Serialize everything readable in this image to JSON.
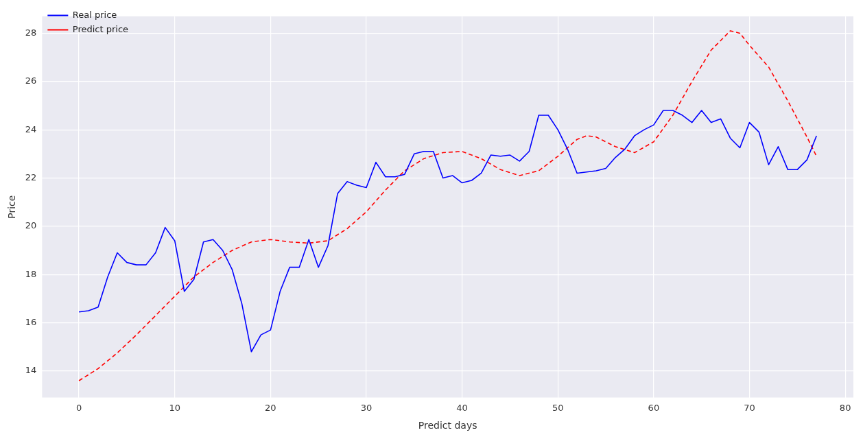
{
  "chart_data": {
    "type": "line",
    "xlabel": "Predict days",
    "ylabel": "Price",
    "xlim": [
      -3.85,
      80.85
    ],
    "ylim": [
      12.9,
      28.7
    ],
    "xticks": [
      0,
      10,
      20,
      30,
      40,
      50,
      60,
      70,
      80
    ],
    "yticks": [
      14,
      16,
      18,
      20,
      22,
      24,
      26,
      28
    ],
    "grid": true,
    "legend": "top left",
    "marker": "none",
    "series": [
      {
        "name": "Real price",
        "color": "#0000ff",
        "line_style": "solid",
        "x": [
          0,
          1,
          2,
          3,
          4,
          5,
          6,
          7,
          8,
          9,
          10,
          11,
          12,
          13,
          14,
          15,
          16,
          17,
          18,
          19,
          20,
          21,
          22,
          23,
          24,
          25,
          26,
          27,
          28,
          29,
          30,
          31,
          32,
          33,
          34,
          35,
          36,
          37,
          38,
          39,
          40,
          41,
          42,
          43,
          44,
          45,
          46,
          47,
          48,
          49,
          50,
          51,
          52,
          53,
          54,
          55,
          56,
          57,
          58,
          59,
          60,
          61,
          62,
          63,
          64,
          65,
          66,
          67,
          68,
          69,
          70,
          71,
          72,
          73,
          74,
          75,
          76,
          77
        ],
        "values": [
          16.45,
          16.5,
          16.65,
          17.9,
          18.9,
          18.5,
          18.4,
          18.4,
          18.9,
          19.95,
          19.4,
          17.3,
          17.8,
          19.35,
          19.45,
          19.0,
          18.2,
          16.8,
          14.8,
          15.5,
          15.7,
          17.3,
          18.3,
          18.3,
          19.45,
          18.3,
          19.2,
          21.35,
          21.85,
          21.7,
          21.6,
          22.65,
          22.05,
          22.05,
          22.15,
          23.0,
          23.1,
          23.1,
          22.0,
          22.1,
          21.8,
          21.9,
          22.2,
          22.95,
          22.9,
          22.95,
          22.7,
          23.1,
          24.6,
          24.6,
          24.0,
          23.2,
          22.2,
          22.25,
          22.3,
          22.4,
          22.85,
          23.2,
          23.75,
          24.0,
          24.2,
          24.8,
          24.8,
          24.6,
          24.3,
          24.8,
          24.3,
          24.45,
          23.65,
          23.25,
          24.3,
          23.9,
          22.55,
          23.3,
          22.35,
          22.35,
          22.75,
          23.75
        ]
      },
      {
        "name": "Predict price",
        "color": "#ff0000",
        "line_style": "dashed",
        "x": [
          0,
          2,
          4,
          6,
          8,
          10,
          12,
          14,
          16,
          18,
          20,
          22,
          24,
          26,
          28,
          30,
          32,
          34,
          36,
          38,
          40,
          42,
          44,
          46,
          48,
          50,
          52,
          53,
          54,
          56,
          58,
          60,
          62,
          64,
          66,
          68,
          69,
          70,
          72,
          74,
          76,
          77
        ],
        "values": [
          13.6,
          14.1,
          14.75,
          15.5,
          16.3,
          17.1,
          17.9,
          18.5,
          19.0,
          19.35,
          19.45,
          19.35,
          19.3,
          19.4,
          19.9,
          20.6,
          21.5,
          22.3,
          22.8,
          23.05,
          23.1,
          22.8,
          22.35,
          22.1,
          22.3,
          22.9,
          23.6,
          23.75,
          23.7,
          23.3,
          23.05,
          23.5,
          24.6,
          26.0,
          27.3,
          28.1,
          28.0,
          27.5,
          26.6,
          25.2,
          23.7,
          22.9
        ]
      }
    ]
  }
}
